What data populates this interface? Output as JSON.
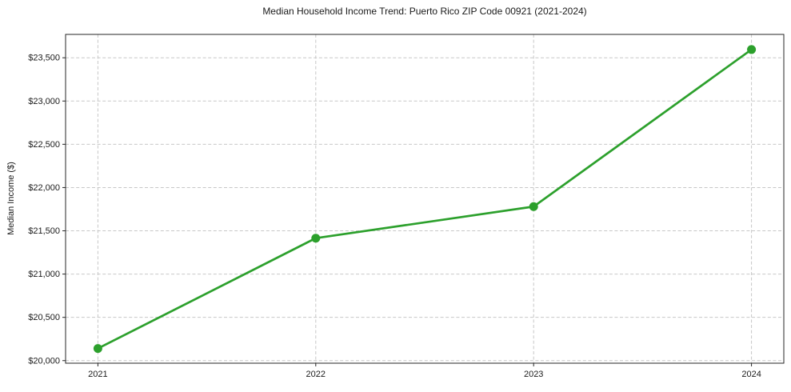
{
  "chart_data": {
    "type": "line",
    "title": "Median Household Income Trend: Puerto Rico ZIP Code 00921 (2021-2024)",
    "xlabel": "",
    "ylabel": "Median Income ($)",
    "categories": [
      "2021",
      "2022",
      "2023",
      "2024"
    ],
    "series": [
      {
        "name": "Median Household Income",
        "values": [
          20140,
          21415,
          21780,
          23595
        ],
        "color": "#2ca02c",
        "marker": "circle"
      }
    ],
    "ylim": [
      19970,
      23770
    ],
    "yticks": {
      "values": [
        20000,
        20500,
        21000,
        21500,
        22000,
        22500,
        23000,
        23500
      ],
      "labels": [
        "$20,000",
        "$20,500",
        "$21,000",
        "$21,500",
        "$22,000",
        "$22,500",
        "$23,000",
        "$23,500"
      ]
    },
    "grid": true,
    "grid_linestyle": "dashed",
    "legend_position": "none",
    "colors": {
      "line": "#2ca02c",
      "grid": "#c7c7c7",
      "spine": "#262626",
      "text": "#1a1a1a",
      "background": "#ffffff"
    }
  }
}
